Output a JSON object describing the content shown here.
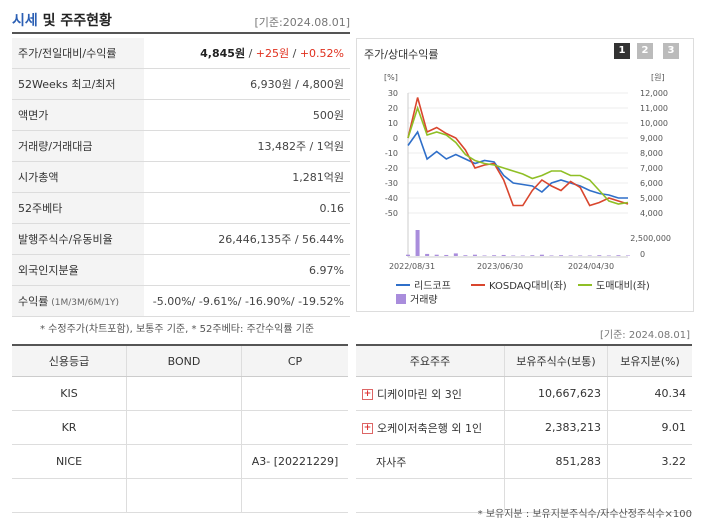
{
  "header": {
    "title_main": "시세",
    "title_rest": " 및 주주현황",
    "date": "[기준:2024.08.01]"
  },
  "info_rows": [
    {
      "label": "주가/전일대비/수익률",
      "value_a": "4,845원",
      "sep1": " / ",
      "value_b": "+25원",
      "sep2": " / ",
      "value_c": "+0.52%"
    },
    {
      "label": "52Weeks 최고/최저",
      "value": "6,930원 / 4,800원"
    },
    {
      "label": "액면가",
      "value": "500원"
    },
    {
      "label": "거래량/거래대금",
      "value": "13,482주 / 1억원"
    },
    {
      "label": "시가총액",
      "value": "1,281억원"
    },
    {
      "label": "52주베타",
      "value": "0.16"
    },
    {
      "label": "발행주식수/유동비율",
      "value": "26,446,135주 / 56.44%"
    },
    {
      "label": "외국인지분율",
      "value": "6.97%"
    },
    {
      "label": "수익률",
      "label_sub": " (1M/3M/6M/1Y)",
      "value": "-5.00%/ -9.61%/ -16.90%/ -19.52%"
    }
  ],
  "note_left": "* 수정주가(차트포함), 보통주 기준, * 52주베타: 주간수익률 기준",
  "chart": {
    "title": "주가/상대수익률",
    "period_buttons": [
      "1",
      "2",
      "3"
    ]
  },
  "chart_data": {
    "type": "line",
    "y_left_unit": "[%]",
    "y_right_unit": "[원]",
    "y_left_ticks": [
      "30",
      "20",
      "10",
      "0",
      "-10",
      "-20",
      "-30",
      "-40",
      "-50"
    ],
    "y_right_ticks": [
      "12,000",
      "11,000",
      "10,000",
      "9,000",
      "8,000",
      "7,000",
      "6,000",
      "5,000",
      "4,000"
    ],
    "y_left_range": [
      -50,
      30
    ],
    "volume_ticks": [
      "2,500,000",
      "0"
    ],
    "x_labels": [
      "2022/08/31",
      "2023/06/30",
      "2024/04/30"
    ],
    "series": [
      {
        "name": "리드코프",
        "color": "#2f6fc9",
        "values": [
          -5,
          4,
          -14,
          -9,
          -14,
          -11,
          -14,
          -17,
          -15,
          -16,
          -25,
          -30,
          -31,
          -32,
          -36,
          -30,
          -28,
          -30,
          -32,
          -35,
          -37,
          -38,
          -40,
          -40
        ]
      },
      {
        "name": "KOSDAQ대비(좌)",
        "color": "#d9462e",
        "values": [
          0,
          27,
          4,
          7,
          3,
          0,
          -8,
          -20,
          -18,
          -17,
          -28,
          -45,
          -45,
          -35,
          -28,
          -32,
          -35,
          -29,
          -33,
          -45,
          -43,
          -40,
          -42,
          -44
        ]
      },
      {
        "name": "도매대비(좌)",
        "color": "#8fbf26",
        "values": [
          0,
          20,
          2,
          4,
          2,
          -3,
          -11,
          -15,
          -17,
          -18,
          -20,
          -22,
          -24,
          -27,
          -25,
          -22,
          -22,
          -25,
          -25,
          -28,
          -35,
          -42,
          -44,
          -43
        ]
      }
    ],
    "volume": {
      "name": "거래량",
      "color": "#a98ddc",
      "values": [
        0.05,
        1.0,
        0.08,
        0.05,
        0.04,
        0.1,
        0.03,
        0.05,
        0.02,
        0.03,
        0.04,
        0.02,
        0.02,
        0.03,
        0.05,
        0.02,
        0.03,
        0.02,
        0.02,
        0.02,
        0.03,
        0.02,
        0.03,
        0.02
      ]
    }
  },
  "date_mid": "[기준: 2024.08.01]",
  "credit": {
    "headers": [
      "신용등급",
      "BOND",
      "CP"
    ],
    "rows": [
      [
        "KIS",
        "",
        ""
      ],
      [
        "KR",
        "",
        ""
      ],
      [
        "NICE",
        "",
        "A3- [20221229]"
      ],
      [
        "",
        "",
        ""
      ]
    ]
  },
  "shareholders": {
    "headers": [
      "주요주주",
      "보유주식수(보통)",
      "보유지분(%)"
    ],
    "rows": [
      {
        "name": "디케이마린 외 3인",
        "shares": "10,667,623",
        "pct": "40.34",
        "expand": true
      },
      {
        "name": "오케이저축은행 외 1인",
        "shares": "2,383,213",
        "pct": "9.01",
        "expand": true
      },
      {
        "name": "자사주",
        "shares": "851,283",
        "pct": "3.22",
        "expand": false
      },
      {
        "name": "",
        "shares": "",
        "pct": "",
        "expand": false
      }
    ]
  },
  "note_bottom": "* 보유지분 : 보유지분주식수/자수산정주식수×100"
}
